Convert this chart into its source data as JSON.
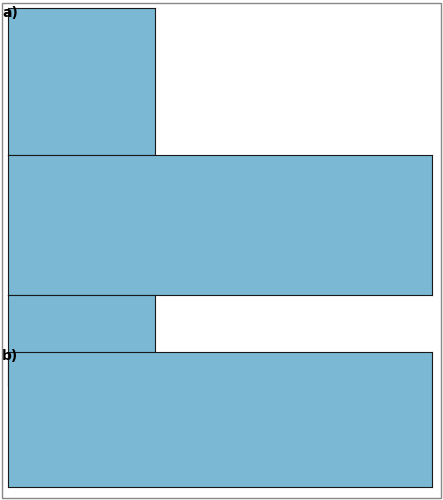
{
  "figure_width": 4.43,
  "figure_height": 5.0,
  "dpi": 100,
  "background_color": "#ffffff",
  "ocean_color": "#7ab8d4",
  "land_color": "#d4e8c2",
  "border_color": "#1a1a1a",
  "tissot_color": "#f0a030",
  "tissot_alpha": 0.6,
  "tissot_edge": "none",
  "label_a": "a)",
  "label_b": "b)",
  "label_fontsize": 10,
  "label_fontweight": "bold",
  "grid_color": "#aaaaaa",
  "grid_alpha": 0.5,
  "grid_lw": 0.3,
  "coast_lw": 0.5,
  "coast_color": "#1a1a1a",
  "panel_border_lw": 0.8,
  "tissot_rad_deg": 15,
  "n_tissot_lat": 3,
  "n_tissot_lon": 7
}
